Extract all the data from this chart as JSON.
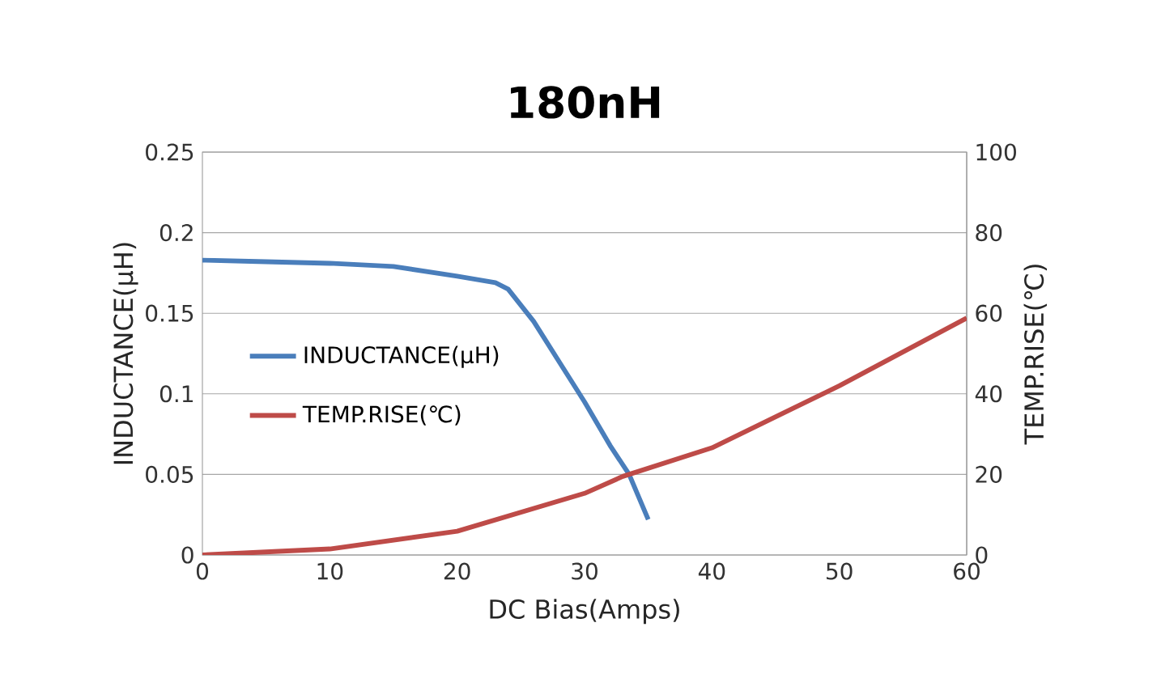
{
  "chart_data": {
    "type": "line",
    "title": "180nH",
    "xlabel": "DC Bias(Amps)",
    "ylabel": "INDUCTANCE(μH)",
    "y2label": "TEMP.RISE(℃)",
    "xlim": [
      0,
      60
    ],
    "xticks": [
      0,
      10,
      20,
      30,
      40,
      50,
      60
    ],
    "ylim": [
      0,
      0.25
    ],
    "yticks": [
      0,
      0.05,
      0.1,
      0.15,
      0.2,
      0.25
    ],
    "y2lim": [
      0,
      100
    ],
    "y2ticks": [
      0,
      20,
      40,
      60,
      80,
      100
    ],
    "grid": "y",
    "legend": "left",
    "marker": "none",
    "line_style": "solid",
    "series": [
      {
        "name": "INDUCTANCE(μH)",
        "color": "#4a7ebb",
        "x": [
          0,
          5,
          10,
          15,
          20,
          23,
          24,
          26,
          28,
          30,
          32,
          33.5,
          35
        ],
        "values": [
          0.183,
          0.182,
          0.181,
          0.179,
          0.173,
          0.169,
          0.165,
          0.145,
          0.12,
          0.095,
          0.068,
          0.05,
          0.022
        ]
      },
      {
        "name": "TEMP.RISE(℃)",
        "color": "#be4b48",
        "axis": "y2",
        "x": [
          0,
          10,
          20,
          30,
          33,
          40,
          50,
          60
        ],
        "values": [
          0,
          1.5,
          5.9,
          15.3,
          19.5,
          26.6,
          42,
          58.8
        ]
      }
    ]
  }
}
